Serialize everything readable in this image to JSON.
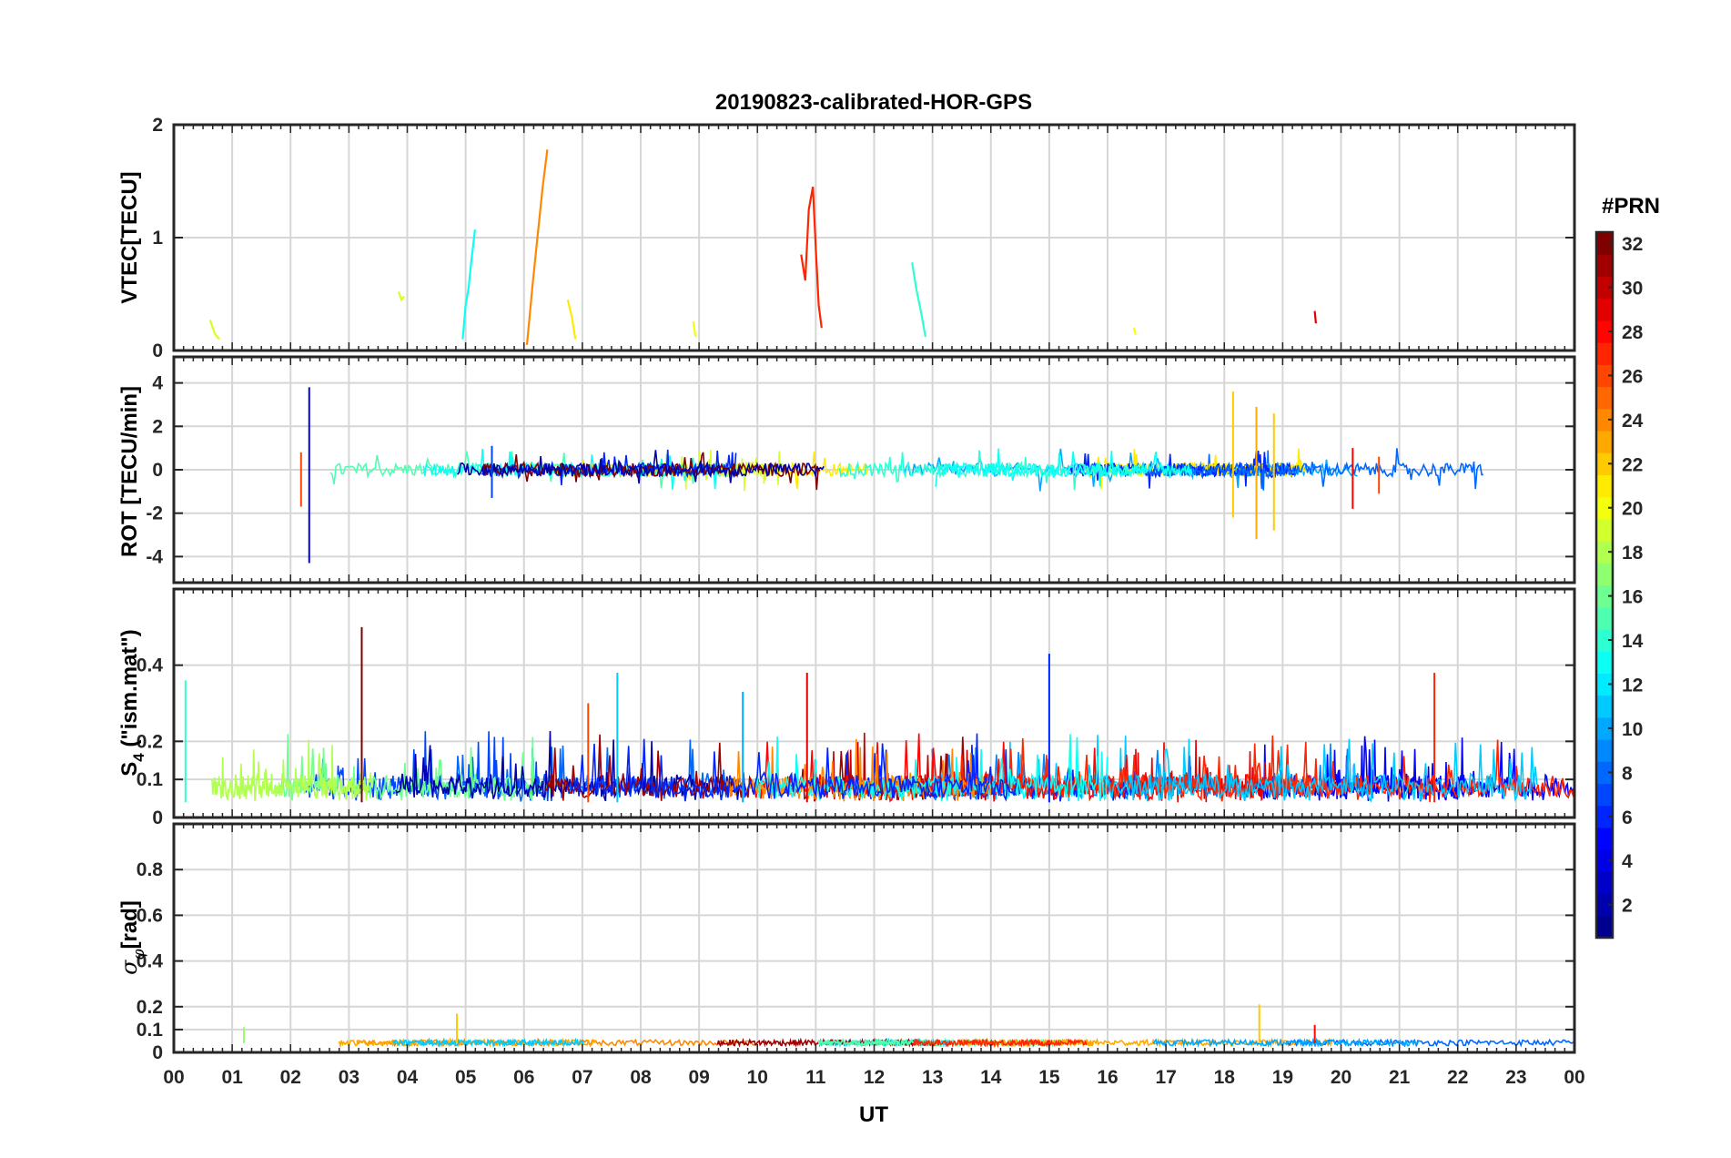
{
  "chart_data": {
    "type": "line",
    "title": "20190823-calibrated-HOR-GPS",
    "xlabel": "UT",
    "x_ticks": [
      "00",
      "01",
      "02",
      "03",
      "04",
      "05",
      "06",
      "07",
      "08",
      "09",
      "10",
      "11",
      "12",
      "13",
      "14",
      "15",
      "16",
      "17",
      "18",
      "19",
      "20",
      "21",
      "22",
      "23",
      "00"
    ],
    "xlim": [
      0,
      24
    ],
    "colorbar": {
      "label": "#PRN",
      "range": [
        1,
        32
      ],
      "ticks": [
        "32",
        "30",
        "28",
        "26",
        "24",
        "22",
        "20",
        "18",
        "16",
        "14",
        "12",
        "10",
        "8",
        "6",
        "4",
        "2"
      ],
      "tick_values": [
        32,
        30,
        28,
        26,
        24,
        22,
        20,
        18,
        16,
        14,
        12,
        10,
        8,
        6,
        4,
        2
      ],
      "colormap": [
        "#00008f",
        "#0000ff",
        "#0080ff",
        "#00ffff",
        "#80ff80",
        "#ffff00",
        "#ff8000",
        "#ff0000",
        "#800000"
      ]
    },
    "panels": [
      {
        "ylabel": "VTEC[TECU]",
        "ylim": [
          0,
          2
        ],
        "y_ticks": [
          "2",
          "1",
          "0"
        ],
        "y_tick_values": [
          2,
          1,
          0
        ],
        "grid": true,
        "series": [
          {
            "prn": 19,
            "x": [
              0.62,
              0.7,
              0.78
            ],
            "y": [
              0.27,
              0.15,
              0.1
            ]
          },
          {
            "prn": 19,
            "x": [
              3.85,
              3.9,
              3.95
            ],
            "y": [
              0.52,
              0.45,
              0.48
            ]
          },
          {
            "prn": 13,
            "x": [
              4.95,
              5.0,
              5.05,
              5.1,
              5.16
            ],
            "y": [
              0.1,
              0.4,
              0.55,
              0.8,
              1.07
            ]
          },
          {
            "prn": 24,
            "x": [
              6.05,
              6.15,
              6.25,
              6.32,
              6.4
            ],
            "y": [
              0.05,
              0.6,
              1.1,
              1.45,
              1.78
            ]
          },
          {
            "prn": 21,
            "x": [
              6.75,
              6.82,
              6.88
            ],
            "y": [
              0.45,
              0.3,
              0.1
            ]
          },
          {
            "prn": 20,
            "x": [
              8.9,
              8.94
            ],
            "y": [
              0.26,
              0.12
            ]
          },
          {
            "prn": 27,
            "x": [
              10.75,
              10.82,
              10.88,
              10.95,
              11.0,
              11.05,
              11.1
            ],
            "y": [
              0.85,
              0.62,
              1.25,
              1.45,
              0.9,
              0.4,
              0.2
            ]
          },
          {
            "prn": 14,
            "x": [
              12.65,
              12.72,
              12.8,
              12.88
            ],
            "y": [
              0.78,
              0.55,
              0.35,
              0.12
            ]
          },
          {
            "prn": 20,
            "x": [
              16.45,
              16.48
            ],
            "y": [
              0.2,
              0.14
            ]
          },
          {
            "prn": 29,
            "x": [
              19.55,
              19.57
            ],
            "y": [
              0.35,
              0.24
            ]
          }
        ]
      },
      {
        "ylabel": "ROT [TECU/min]",
        "ylim": [
          -5.2,
          5.2
        ],
        "y_ticks": [
          "4",
          "2",
          "0",
          "-2",
          "-4"
        ],
        "y_tick_values": [
          4,
          2,
          0,
          -2,
          -4
        ],
        "grid": true,
        "spikes": [
          {
            "prn": 4,
            "x": 2.32,
            "min": -4.3,
            "max": 3.8
          },
          {
            "prn": 26,
            "x": 2.18,
            "min": -1.7,
            "max": 0.8
          },
          {
            "prn": 7,
            "x": 5.45,
            "min": -1.3,
            "max": 1.1
          },
          {
            "prn": 22,
            "x": 18.15,
            "min": -2.2,
            "max": 3.6
          },
          {
            "prn": 23,
            "x": 18.55,
            "min": -3.2,
            "max": 2.9
          },
          {
            "prn": 22,
            "x": 18.85,
            "min": -2.8,
            "max": 2.6
          },
          {
            "prn": 28,
            "x": 20.2,
            "min": -1.8,
            "max": 1.0
          },
          {
            "prn": 26,
            "x": 20.65,
            "min": -1.1,
            "max": 0.6
          }
        ]
      },
      {
        "ylabel": "S4 (\"ism.mat\")",
        "ylabel_main": "S",
        "ylabel_sub": "4",
        "ylabel_rest": " (\"ism.mat\")",
        "ylim": [
          0,
          0.6
        ],
        "y_ticks": [
          "0.4",
          "0.2",
          "0.1",
          "0"
        ],
        "y_tick_values": [
          0.4,
          0.2,
          0.1,
          0
        ],
        "grid": true,
        "spikes": [
          {
            "prn": 32,
            "x": 3.22,
            "max": 0.5
          },
          {
            "prn": 11,
            "x": 7.6,
            "max": 0.38
          },
          {
            "prn": 29,
            "x": 10.85,
            "max": 0.38
          },
          {
            "prn": 6,
            "x": 15.0,
            "max": 0.43
          },
          {
            "prn": 27,
            "x": 21.6,
            "max": 0.38
          },
          {
            "prn": 14,
            "x": 0.2,
            "max": 0.36
          },
          {
            "prn": 10,
            "x": 9.75,
            "max": 0.33
          },
          {
            "prn": 26,
            "x": 7.1,
            "max": 0.3
          }
        ]
      },
      {
        "ylabel": "σφ[rad]",
        "ylabel_main": "σ",
        "ylabel_sub": "φ",
        "ylabel_rest": "[rad]",
        "ylim": [
          0,
          1
        ],
        "y_ticks": [
          "0.8",
          "0.6",
          "0.4",
          "0.2",
          "0.1",
          "0"
        ],
        "y_tick_values": [
          0.8,
          0.6,
          0.4,
          0.2,
          0.1,
          0
        ],
        "grid": true,
        "spikes": [
          {
            "prn": 22,
            "x": 4.85,
            "max": 0.17
          },
          {
            "prn": 22,
            "x": 18.6,
            "max": 0.21
          },
          {
            "prn": 28,
            "x": 19.55,
            "max": 0.12
          },
          {
            "prn": 17,
            "x": 1.2,
            "max": 0.11
          }
        ]
      }
    ]
  }
}
